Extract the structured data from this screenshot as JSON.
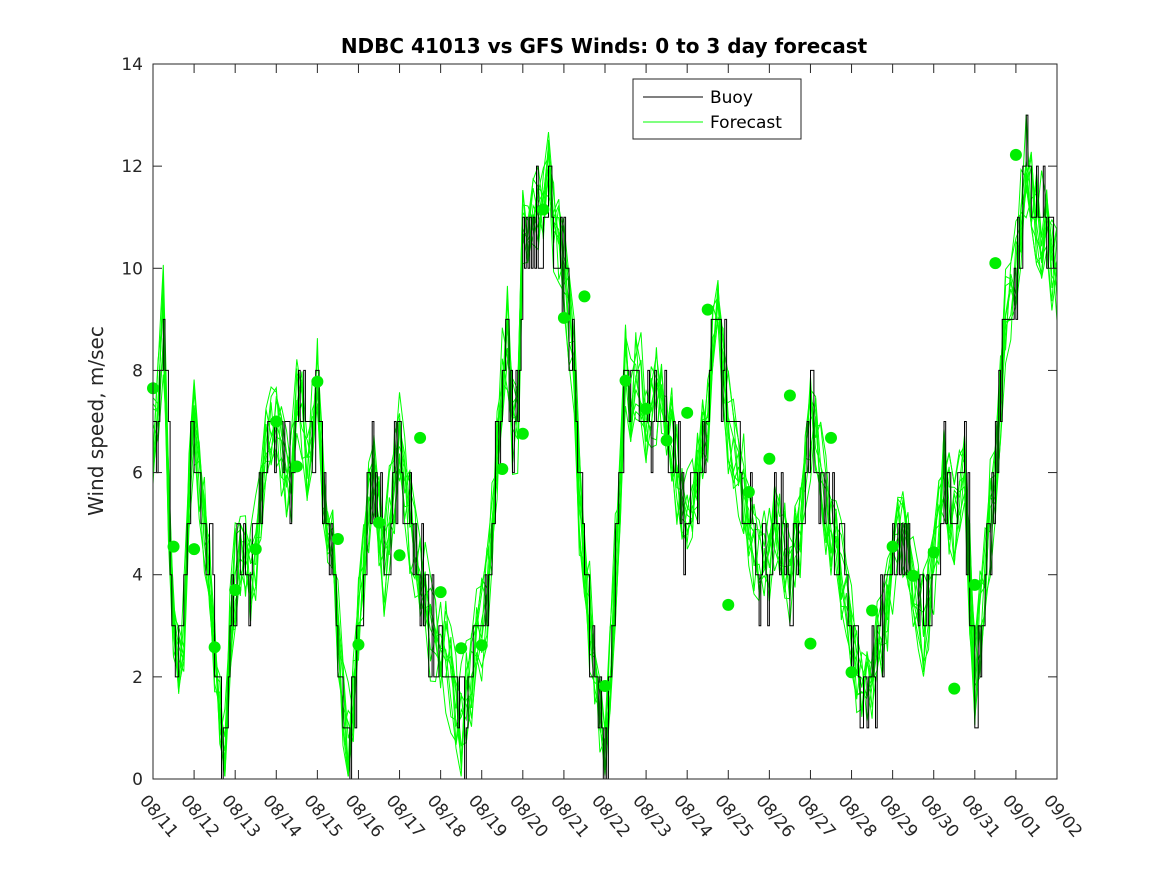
{
  "chart_data": {
    "type": "line",
    "title": "NDBC 41013 vs GFS Winds: 0 to 3 day forecast",
    "xlabel": "",
    "ylabel": "Wind speed, m/sec",
    "xlim": [
      0,
      22
    ],
    "ylim": [
      0,
      14
    ],
    "yticks": [
      0,
      2,
      4,
      6,
      8,
      10,
      12,
      14
    ],
    "xtick_labels": [
      "08/11",
      "08/12",
      "08/13",
      "08/14",
      "08/15",
      "08/16",
      "08/17",
      "08/18",
      "08/19",
      "08/20",
      "08/21",
      "08/22",
      "08/23",
      "08/24",
      "08/25",
      "08/26",
      "08/27",
      "08/28",
      "08/29",
      "08/30",
      "08/31",
      "09/01",
      "09/02"
    ],
    "legend": {
      "position": "top-center",
      "entries": [
        "Buoy",
        "Forecast"
      ]
    },
    "colors": {
      "buoy": "#000000",
      "forecast": "#00ff00",
      "markers": "#00ee00"
    },
    "buoy_anchors": {
      "x": [
        0,
        0.15,
        0.25,
        0.4,
        0.5,
        0.6,
        0.75,
        0.9,
        1.0,
        1.2,
        1.4,
        1.55,
        1.75,
        1.9,
        2.0,
        2.2,
        2.4,
        2.5,
        2.75,
        3.0,
        3.2,
        3.4,
        3.55,
        3.75,
        4.0,
        4.2,
        4.35,
        4.5,
        4.65,
        4.8,
        5.0,
        5.2,
        5.4,
        5.5,
        5.65,
        5.75,
        5.9,
        6.0,
        6.25,
        6.5,
        6.75,
        7.0,
        7.25,
        7.5,
        7.75,
        8.0,
        8.2,
        8.3,
        8.45,
        8.6,
        8.75,
        8.9,
        9.0,
        9.25,
        9.5,
        9.65,
        9.75,
        10.0,
        10.25,
        10.4,
        10.55,
        10.75,
        11.0,
        11.25,
        11.4,
        11.5,
        11.6,
        11.75,
        12.0,
        12.25,
        12.5,
        12.75,
        13.0,
        13.25,
        13.5,
        13.65,
        13.75,
        14.0,
        14.25,
        14.5,
        14.75,
        15.0,
        15.25,
        15.5,
        15.75,
        16.0,
        16.25,
        16.5,
        16.75,
        17.0,
        17.25,
        17.5,
        17.75,
        18.0,
        18.25,
        18.5,
        18.75,
        19.0,
        19.25,
        19.5,
        19.75,
        20.0,
        20.25,
        20.5,
        20.75,
        21.0,
        21.25,
        21.5,
        21.75,
        22.0
      ],
      "y": [
        6.5,
        8,
        9,
        5,
        3,
        2,
        3,
        6,
        7,
        5,
        4,
        1.5,
        0.5,
        3,
        4,
        4.5,
        4,
        4.5,
        6.5,
        7,
        6,
        6,
        8,
        6,
        8,
        5,
        4.5,
        3,
        1,
        0.5,
        3,
        5,
        6,
        5,
        4,
        5,
        6,
        6.5,
        5,
        4,
        3,
        2.5,
        2,
        1,
        2,
        3,
        4,
        6,
        7,
        9,
        7,
        7,
        11,
        11,
        11,
        12,
        11,
        10,
        8,
        5,
        4,
        2,
        0.5,
        4,
        6,
        8,
        7,
        8,
        7,
        7.5,
        7,
        6,
        5,
        6,
        7,
        9,
        9,
        7,
        6,
        5,
        4,
        4.5,
        5,
        4,
        5,
        7,
        6,
        5,
        4,
        3,
        1.5,
        2,
        3,
        4,
        5,
        4,
        3,
        4,
        6,
        5,
        6,
        2,
        4,
        6,
        9,
        10,
        12,
        11,
        10.5,
        10
      ]
    },
    "forecast_markers": {
      "x": [
        0,
        0.5,
        1.0,
        1.5,
        2.0,
        2.5,
        3.0,
        3.5,
        4.0,
        4.5,
        5.0,
        5.5,
        6.0,
        6.5,
        7.0,
        7.5,
        8.0,
        8.5,
        9.0,
        9.5,
        10.0,
        10.5,
        11.0,
        11.5,
        12.0,
        12.5,
        13.0,
        13.5,
        14.0,
        14.5,
        15.0,
        15.5,
        16.0,
        16.5,
        17.0,
        17.5,
        18.0,
        18.5,
        19.0,
        19.5,
        20.0,
        20.5,
        21.0
      ],
      "y": [
        7.65,
        4.55,
        4.5,
        2.58,
        3.7,
        4.5,
        7.0,
        6.12,
        7.78,
        4.7,
        2.63,
        5.02,
        4.38,
        6.68,
        3.66,
        2.56,
        2.62,
        6.07,
        6.76,
        11.15,
        9.03,
        9.45,
        1.82,
        7.8,
        7.25,
        6.63,
        7.17,
        9.19,
        3.41,
        5.62,
        6.27,
        7.51,
        2.65,
        6.68,
        2.09,
        3.3,
        4.55,
        3.98,
        4.44,
        1.77,
        3.8,
        10.1,
        12.22
      ]
    }
  }
}
